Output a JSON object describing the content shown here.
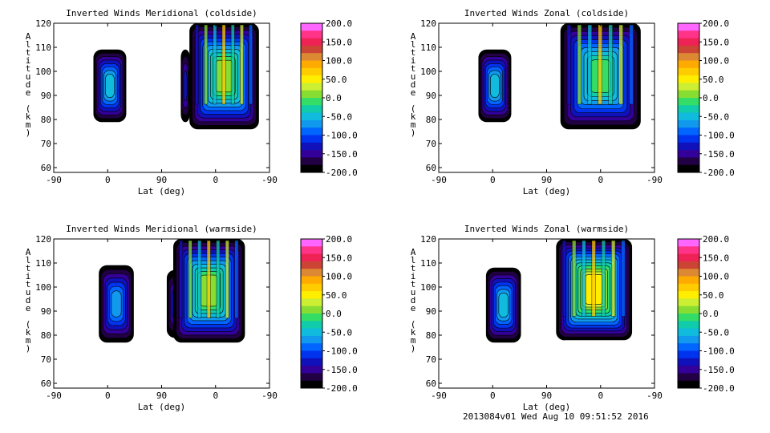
{
  "footer": "2013084v01 Wed Aug 10 09:51:52 2016",
  "colorscale": {
    "levels": [
      "200.0",
      "150.0",
      "100.0",
      "50.0",
      "0.0",
      "-50.0",
      "-100.0",
      "-150.0",
      "-200.0"
    ],
    "colors_top_to_bottom": [
      "#ff66ff",
      "#ff3388",
      "#ee2255",
      "#cc4433",
      "#dd8833",
      "#ffaa00",
      "#ffcc00",
      "#ffee00",
      "#ccee33",
      "#88dd33",
      "#33dd66",
      "#11ccaa",
      "#11bbdd",
      "#1199ee",
      "#0066ff",
      "#0033ee",
      "#1111bb",
      "#330099",
      "#220044",
      "#000000"
    ]
  },
  "chart_data": [
    {
      "type": "heatmap",
      "title": "Inverted Winds Meridional (coldside)",
      "xlabel": "Lat (deg)",
      "ylabel": "Altitude (km)",
      "xticks": [
        "-90",
        "0",
        "90",
        "0",
        "-90"
      ],
      "yticks": [
        "120",
        "110",
        "100",
        "90",
        "80",
        "70",
        "60"
      ],
      "ylim": [
        58,
        120
      ],
      "colorbar_range": [
        -200,
        200
      ]
    },
    {
      "type": "heatmap",
      "title": "Inverted Winds Zonal (coldside)",
      "xlabel": "Lat (deg)",
      "ylabel": "Altitude (km)",
      "xticks": [
        "-90",
        "0",
        "90",
        "0",
        "-90"
      ],
      "yticks": [
        "120",
        "110",
        "100",
        "90",
        "80",
        "70",
        "60"
      ],
      "ylim": [
        58,
        120
      ],
      "colorbar_range": [
        -200,
        200
      ]
    },
    {
      "type": "heatmap",
      "title": "Inverted Winds Meridional (warmside)",
      "xlabel": "Lat (deg)",
      "ylabel": "Altitude (km)",
      "xticks": [
        "-90",
        "0",
        "90",
        "0",
        "-90"
      ],
      "yticks": [
        "120",
        "110",
        "100",
        "90",
        "80",
        "70",
        "60"
      ],
      "ylim": [
        58,
        120
      ],
      "colorbar_range": [
        -200,
        200
      ]
    },
    {
      "type": "heatmap",
      "title": "Inverted Winds Zonal (warmside)",
      "xlabel": "Lat (deg)",
      "ylabel": "Altitude (km)",
      "xticks": [
        "-90",
        "0",
        "90",
        "0",
        "-90"
      ],
      "yticks": [
        "120",
        "110",
        "100",
        "90",
        "80",
        "70",
        "60"
      ],
      "ylim": [
        58,
        120
      ],
      "colorbar_range": [
        -200,
        200
      ]
    }
  ]
}
